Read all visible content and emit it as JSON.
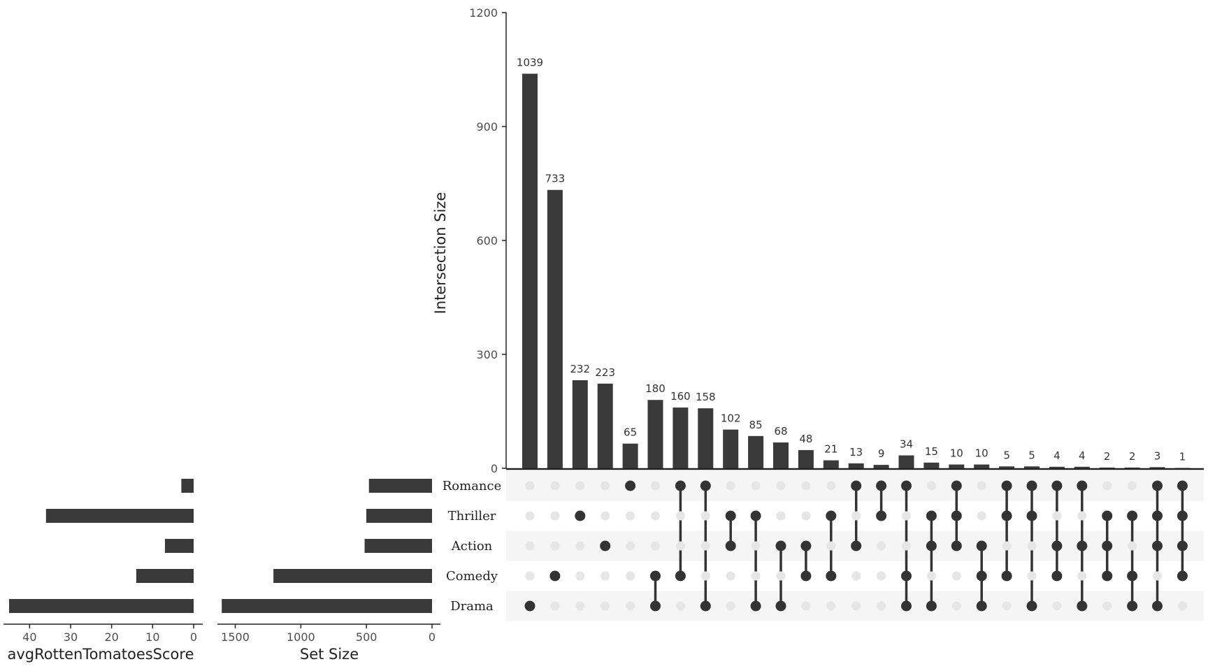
{
  "chart_data": {
    "type": "bar",
    "colors": {
      "bar": "#3a3a3a",
      "dot_active": "#333333",
      "dot_inactive": "#e6e6e6",
      "stripe": "#f5f5f5"
    },
    "sets": [
      "Romance",
      "Thriller",
      "Action",
      "Comedy",
      "Drama"
    ],
    "intersection_axis": {
      "title": "Intersection Size",
      "ylim": [
        0,
        1200
      ],
      "ticks": [
        0,
        300,
        600,
        900,
        1200
      ]
    },
    "intersections": [
      {
        "sets": [
          "Drama"
        ],
        "size": 1039
      },
      {
        "sets": [
          "Comedy"
        ],
        "size": 733
      },
      {
        "sets": [
          "Thriller"
        ],
        "size": 232
      },
      {
        "sets": [
          "Action"
        ],
        "size": 223
      },
      {
        "sets": [
          "Romance"
        ],
        "size": 65
      },
      {
        "sets": [
          "Comedy",
          "Drama"
        ],
        "size": 180
      },
      {
        "sets": [
          "Romance",
          "Comedy"
        ],
        "size": 160
      },
      {
        "sets": [
          "Romance",
          "Drama"
        ],
        "size": 158
      },
      {
        "sets": [
          "Thriller",
          "Action"
        ],
        "size": 102
      },
      {
        "sets": [
          "Thriller",
          "Drama"
        ],
        "size": 85
      },
      {
        "sets": [
          "Action",
          "Drama"
        ],
        "size": 68
      },
      {
        "sets": [
          "Action",
          "Comedy"
        ],
        "size": 48
      },
      {
        "sets": [
          "Thriller",
          "Comedy"
        ],
        "size": 21
      },
      {
        "sets": [
          "Romance",
          "Action"
        ],
        "size": 13
      },
      {
        "sets": [
          "Romance",
          "Thriller"
        ],
        "size": 9
      },
      {
        "sets": [
          "Romance",
          "Comedy",
          "Drama"
        ],
        "size": 34
      },
      {
        "sets": [
          "Thriller",
          "Action",
          "Drama"
        ],
        "size": 15
      },
      {
        "sets": [
          "Romance",
          "Thriller",
          "Action"
        ],
        "size": 10
      },
      {
        "sets": [
          "Action",
          "Comedy",
          "Drama"
        ],
        "size": 10
      },
      {
        "sets": [
          "Romance",
          "Thriller",
          "Comedy"
        ],
        "size": 5
      },
      {
        "sets": [
          "Romance",
          "Thriller",
          "Drama"
        ],
        "size": 5
      },
      {
        "sets": [
          "Romance",
          "Action",
          "Comedy"
        ],
        "size": 4
      },
      {
        "sets": [
          "Romance",
          "Action",
          "Drama"
        ],
        "size": 4
      },
      {
        "sets": [
          "Thriller",
          "Action",
          "Comedy"
        ],
        "size": 2
      },
      {
        "sets": [
          "Thriller",
          "Comedy",
          "Drama"
        ],
        "size": 2
      },
      {
        "sets": [
          "Romance",
          "Thriller",
          "Action",
          "Drama"
        ],
        "size": 3
      },
      {
        "sets": [
          "Romance",
          "Thriller",
          "Action",
          "Comedy"
        ],
        "size": 1
      }
    ],
    "set_size": {
      "title": "Set Size",
      "xlim": [
        0,
        1700
      ],
      "ticks": [
        1500,
        1000,
        500,
        0
      ],
      "values": {
        "Romance": 481,
        "Thriller": 501,
        "Action": 514,
        "Comedy": 1209,
        "Drama": 1603
      }
    },
    "avg_score": {
      "title": "avgRottenTomatoesScore",
      "xlim": [
        0,
        45
      ],
      "ticks": [
        40,
        30,
        20,
        10,
        0
      ],
      "values": {
        "Romance": 3,
        "Thriller": 36,
        "Action": 7,
        "Comedy": 14,
        "Drama": 45
      }
    }
  }
}
